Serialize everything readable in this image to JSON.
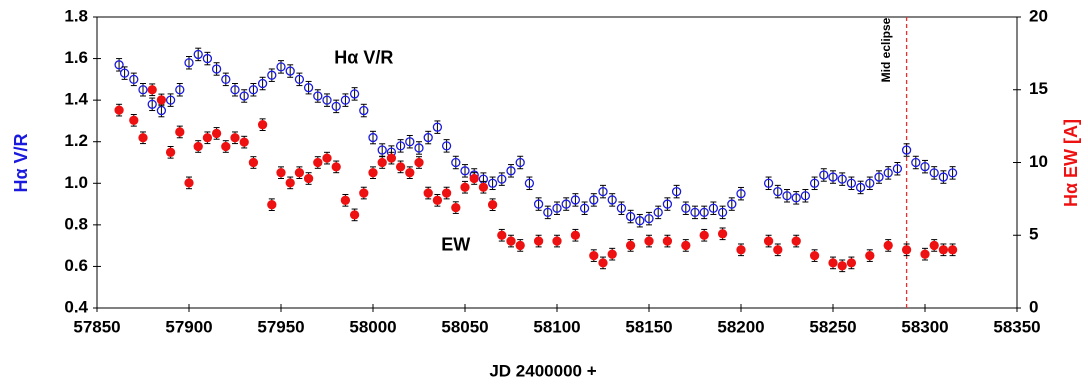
{
  "chart_data": {
    "type": "scatter",
    "xlabel": "JD 2400000 +",
    "ylabel": "Hα V/R",
    "y2label": "Hα EW [A]",
    "xlim": [
      57850,
      58350
    ],
    "xticks": [
      57850,
      57900,
      57950,
      58000,
      58050,
      58100,
      58150,
      58200,
      58250,
      58300,
      58350
    ],
    "ylim": [
      0.4,
      1.8
    ],
    "yticks": [
      0.4,
      0.6,
      0.8,
      {
        "value": 1,
        "label": "1.0"
      },
      1.2,
      1.4,
      1.6,
      1.8
    ],
    "y2lim": [
      0,
      20
    ],
    "y2ticks": [
      0,
      5,
      10,
      15,
      20
    ],
    "annotations": [
      {
        "text": "Hα V/R",
        "x": 57995,
        "y": 1.6
      },
      {
        "text": "EW",
        "x": 58045,
        "y": 0.7
      }
    ],
    "vline": {
      "x": 58290,
      "label": "Mid eclipse",
      "color": "#e8312f"
    },
    "series": [
      {
        "name": "Hα V/R",
        "color": "#1a1adf",
        "marker": "open",
        "error": 0.03,
        "x": [
          57862,
          57865,
          57870,
          57875,
          57880,
          57885,
          57890,
          57895,
          57900,
          57905,
          57910,
          57915,
          57920,
          57925,
          57930,
          57935,
          57940,
          57945,
          57950,
          57955,
          57960,
          57965,
          57970,
          57975,
          57980,
          57985,
          57990,
          57995,
          58000,
          58005,
          58010,
          58015,
          58020,
          58025,
          58030,
          58035,
          58040,
          58045,
          58050,
          58055,
          58060,
          58065,
          58070,
          58075,
          58080,
          58085,
          58090,
          58095,
          58100,
          58105,
          58110,
          58115,
          58120,
          58125,
          58130,
          58135,
          58140,
          58145,
          58150,
          58155,
          58160,
          58165,
          58170,
          58175,
          58180,
          58185,
          58190,
          58195,
          58200,
          58215,
          58220,
          58225,
          58230,
          58235,
          58240,
          58245,
          58250,
          58255,
          58260,
          58265,
          58270,
          58275,
          58280,
          58285,
          58290,
          58295,
          58300,
          58305,
          58310,
          58315
        ],
        "values": [
          1.57,
          1.53,
          1.5,
          1.45,
          1.38,
          1.35,
          1.4,
          1.45,
          1.58,
          1.62,
          1.6,
          1.55,
          1.5,
          1.45,
          1.42,
          1.45,
          1.48,
          1.52,
          1.56,
          1.54,
          1.5,
          1.46,
          1.42,
          1.4,
          1.37,
          1.4,
          1.43,
          1.35,
          1.22,
          1.16,
          1.15,
          1.18,
          1.2,
          1.17,
          1.22,
          1.27,
          1.18,
          1.1,
          1.06,
          1.04,
          1.02,
          1,
          1.02,
          1.06,
          1.1,
          1,
          0.9,
          0.86,
          0.88,
          0.9,
          0.92,
          0.88,
          0.92,
          0.96,
          0.92,
          0.88,
          0.84,
          0.82,
          0.83,
          0.86,
          0.9,
          0.96,
          0.88,
          0.86,
          0.86,
          0.88,
          0.86,
          0.9,
          0.95,
          1,
          0.96,
          0.94,
          0.93,
          0.94,
          1,
          1.04,
          1.03,
          1.02,
          1,
          0.98,
          1,
          1.03,
          1.05,
          1.07,
          1.16,
          1.1,
          1.08,
          1.05,
          1.03,
          1.05
        ]
      },
      {
        "name": "EW",
        "color": "#ee1111",
        "marker": "filled",
        "axis": "y2",
        "error": 0.4,
        "x": [
          57862,
          57870,
          57875,
          57880,
          57885,
          57890,
          57895,
          57900,
          57905,
          57910,
          57915,
          57920,
          57925,
          57930,
          57935,
          57940,
          57945,
          57950,
          57955,
          57960,
          57965,
          57970,
          57975,
          57980,
          57985,
          57990,
          57995,
          58000,
          58005,
          58010,
          58015,
          58020,
          58025,
          58030,
          58035,
          58040,
          58045,
          58050,
          58055,
          58060,
          58065,
          58070,
          58075,
          58080,
          58090,
          58100,
          58110,
          58120,
          58125,
          58130,
          58140,
          58150,
          58160,
          58170,
          58180,
          58190,
          58200,
          58215,
          58220,
          58230,
          58240,
          58250,
          58255,
          58260,
          58270,
          58280,
          58290,
          58300,
          58305,
          58310,
          58315
        ],
        "values": [
          13.6,
          12.9,
          11.7,
          15,
          14.3,
          10.7,
          12.1,
          8.6,
          11.1,
          11.7,
          12,
          11.1,
          11.7,
          11.4,
          10,
          12.6,
          7.1,
          9.3,
          8.6,
          9.3,
          8.9,
          10,
          10.3,
          9.7,
          7.4,
          6.4,
          7.9,
          9.3,
          10,
          10.3,
          9.7,
          9.3,
          10,
          7.9,
          7.4,
          7.9,
          6.9,
          8.3,
          8.9,
          8.3,
          7.1,
          5,
          4.6,
          4.3,
          4.6,
          4.6,
          5,
          3.6,
          3.1,
          3.7,
          4.3,
          4.6,
          4.6,
          4.3,
          5,
          5.1,
          4,
          4.6,
          4,
          4.6,
          3.6,
          3.1,
          2.9,
          3.1,
          3.6,
          4.3,
          4,
          3.7,
          4.3,
          4,
          4
        ]
      }
    ]
  }
}
